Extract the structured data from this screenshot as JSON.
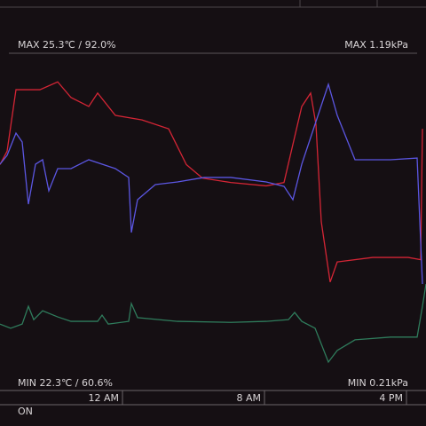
{
  "chart_data": {
    "type": "line",
    "max_left": "MAX 25.3℃ / 92.0%",
    "max_right": "MAX 1.19kPa",
    "min_left": "MIN 22.3℃ / 60.6%",
    "min_right": "MIN 0.21kPa",
    "status": "ON",
    "xlim": [
      -6.9,
      17.1
    ],
    "xticks": [
      {
        "value": 0,
        "label": "12 AM"
      },
      {
        "value": 8,
        "label": "8 AM"
      },
      {
        "value": 16,
        "label": "4 PM"
      }
    ],
    "series": [
      {
        "color": "#d42535",
        "ylim": [
          22.3,
          25.3
        ],
        "x": [
          -6.9,
          -6.5,
          -6.0,
          -4.65,
          -3.65,
          -2.9,
          -1.9,
          -1.4,
          -0.4,
          1.1,
          2.6,
          3.6,
          4.5,
          6.1,
          8.1,
          9.1,
          10.1,
          10.6,
          10.9,
          11.2,
          11.7,
          12.1,
          14.1,
          16.1,
          16.8,
          16.9
        ],
        "values": [
          24.32,
          24.44,
          24.99,
          24.99,
          25.06,
          24.92,
          24.84,
          24.96,
          24.76,
          24.72,
          24.64,
          24.32,
          24.2,
          24.16,
          24.13,
          24.16,
          24.84,
          24.96,
          24.68,
          23.81,
          23.27,
          23.45,
          23.49,
          23.49,
          23.47,
          24.64
        ]
      },
      {
        "color": "#5b56e2",
        "ylim": [
          60.6,
          92.0
        ],
        "x": [
          -6.9,
          -6.5,
          -6.0,
          -5.65,
          -5.3,
          -4.9,
          -4.5,
          -4.15,
          -3.65,
          -2.9,
          -1.9,
          -0.4,
          0.35,
          0.5,
          0.85,
          1.85,
          3.1,
          4.6,
          6.1,
          8.1,
          9.1,
          9.6,
          10.1,
          10.85,
          11.6,
          12.1,
          13.1,
          15.1,
          16.6,
          16.9
        ],
        "values": [
          81.78,
          82.61,
          84.69,
          83.86,
          78.04,
          81.78,
          82.2,
          79.29,
          81.37,
          81.37,
          82.2,
          81.37,
          80.54,
          75.39,
          78.46,
          79.87,
          80.12,
          80.54,
          80.54,
          80.12,
          79.71,
          78.46,
          81.78,
          85.52,
          89.26,
          86.35,
          82.2,
          82.2,
          82.36,
          70.57
        ]
      },
      {
        "color": "#2f7c5c",
        "ylim": [
          0.21,
          1.19
        ],
        "x": [
          -6.9,
          -6.3,
          -5.65,
          -5.3,
          -5.0,
          -4.5,
          -3.65,
          -2.9,
          -1.4,
          -1.15,
          -0.8,
          0.35,
          0.5,
          0.85,
          3.1,
          6.1,
          8.1,
          9.35,
          9.7,
          10.1,
          10.85,
          11.6,
          12.1,
          13.1,
          15.1,
          16.6,
          16.9,
          17.1
        ],
        "values": [
          0.404,
          0.392,
          0.404,
          0.456,
          0.417,
          0.443,
          0.425,
          0.412,
          0.412,
          0.43,
          0.404,
          0.412,
          0.464,
          0.423,
          0.412,
          0.409,
          0.412,
          0.417,
          0.438,
          0.412,
          0.392,
          0.293,
          0.327,
          0.358,
          0.366,
          0.366,
          0.456,
          0.521
        ]
      }
    ]
  }
}
